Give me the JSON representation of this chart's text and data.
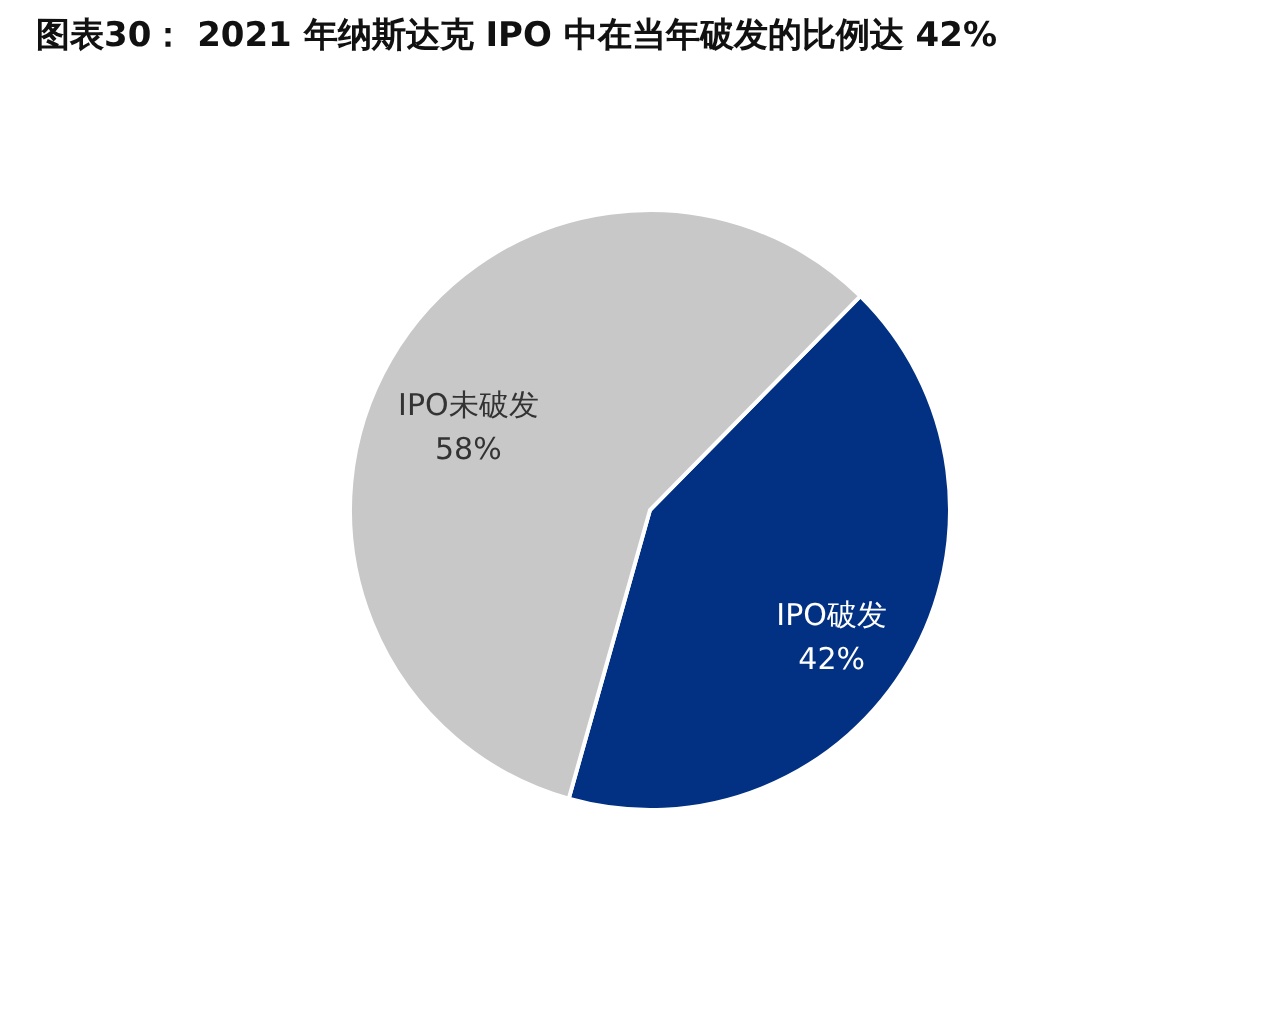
{
  "chart_data": {
    "type": "pie",
    "title": "图表30：  2021 年纳斯达克 IPO 中在当年破发的比例达 42%",
    "categories": [
      "IPO破发",
      "IPO未破发"
    ],
    "values": [
      42,
      58
    ],
    "colors": [
      "#023184",
      "#c8c8c8"
    ],
    "value_labels": [
      "42%",
      "58%"
    ]
  }
}
